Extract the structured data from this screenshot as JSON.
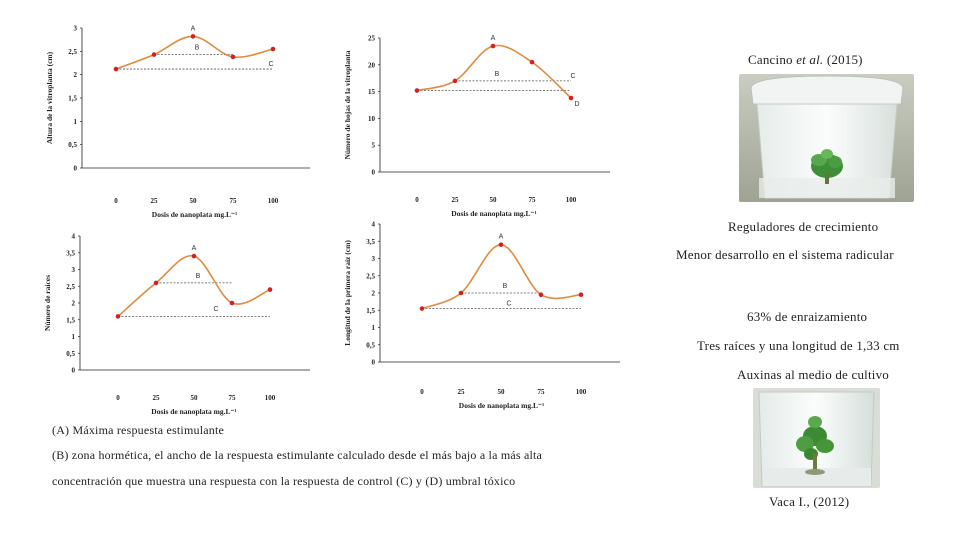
{
  "chart_data": [
    {
      "type": "line",
      "id": "c1",
      "ylabel": "Altura de la vitroplanta (cm)",
      "xlabel": "Dosis de nanoplata mg.L⁻¹",
      "x": [
        0,
        25,
        50,
        75,
        100
      ],
      "y": [
        2.12,
        2.43,
        2.82,
        2.38,
        2.55
      ],
      "ylim": [
        0,
        3
      ],
      "yticks": [
        "0",
        "0,5",
        "1",
        "1,5",
        "2",
        "2,5",
        "3"
      ],
      "ytick_values": [
        0,
        0.5,
        1,
        1.5,
        2,
        2.5,
        3
      ],
      "xticks": [
        "0",
        "25",
        "50",
        "75",
        "100"
      ],
      "control": 2.12,
      "hormetic_level": 2.43,
      "hormetic_x": [
        25,
        75
      ],
      "labels": [
        {
          "text": "A",
          "x": 50,
          "y": 2.82
        },
        {
          "text": "B",
          "x": 50,
          "y": 2.43
        },
        {
          "text": "C",
          "x": 100,
          "y": 2.12
        }
      ]
    },
    {
      "type": "line",
      "id": "c2",
      "ylabel": "Número de hojas de la vitroplanta",
      "xlabel": "Dosis de nanoplata mg.L⁻¹",
      "x": [
        0,
        25,
        50,
        75,
        100
      ],
      "y": [
        15.2,
        17.0,
        23.5,
        20.5,
        13.8
      ],
      "ylim": [
        0,
        25
      ],
      "yticks": [
        "0",
        "5",
        "10",
        "15",
        "20",
        "25"
      ],
      "ytick_values": [
        0,
        5,
        10,
        15,
        20,
        25
      ],
      "xticks": [
        "0",
        "25",
        "50",
        "75",
        "100"
      ],
      "control": 15.2,
      "hormetic_level": 17.0,
      "hormetic_x": [
        25,
        100
      ],
      "labels": [
        {
          "text": "A",
          "x": 50,
          "y": 23.5
        },
        {
          "text": "B",
          "x": 50,
          "y": 17.0
        },
        {
          "text": "C",
          "x": 100,
          "y": 17.0
        },
        {
          "text": "D",
          "x": 100,
          "y": 13.8
        }
      ]
    },
    {
      "type": "line",
      "id": "c3",
      "ylabel": "Número de raíces",
      "xlabel": "Dosis de nanoplata mg.L⁻¹",
      "x": [
        0,
        25,
        50,
        75,
        100
      ],
      "y": [
        1.6,
        2.6,
        3.4,
        2.0,
        2.4
      ],
      "ylim": [
        0,
        4
      ],
      "yticks": [
        "0",
        "0,5",
        "1",
        "1,5",
        "2",
        "2,5",
        "3",
        "3,5",
        "4"
      ],
      "ytick_values": [
        0,
        0.5,
        1,
        1.5,
        2,
        2.5,
        3,
        3.5,
        4
      ],
      "xticks": [
        "0",
        "25",
        "50",
        "75",
        "100"
      ],
      "control": 1.6,
      "hormetic_level": 2.6,
      "hormetic_x": [
        25,
        75
      ],
      "labels": [
        {
          "text": "A",
          "x": 50,
          "y": 3.4
        },
        {
          "text": "B",
          "x": 50,
          "y": 2.6
        },
        {
          "text": "C",
          "x": 75,
          "y": 2.0
        }
      ]
    },
    {
      "type": "line",
      "id": "c4",
      "ylabel": "Longitud de la primera raíz (cm)",
      "xlabel": "Dosis de nanoplata mg.L⁻¹",
      "x": [
        0,
        25,
        50,
        75,
        100
      ],
      "y": [
        1.55,
        2.0,
        3.4,
        1.95,
        1.95
      ],
      "ylim": [
        0,
        4
      ],
      "yticks": [
        "0",
        "0,5",
        "1",
        "1,5",
        "2",
        "2,5",
        "3",
        "3,5",
        "4"
      ],
      "ytick_values": [
        0,
        0.5,
        1,
        1.5,
        2,
        2.5,
        3,
        3.5,
        4
      ],
      "xticks": [
        "0",
        "25",
        "50",
        "75",
        "100"
      ],
      "control": 1.55,
      "hormetic_level": 2.0,
      "hormetic_x": [
        25,
        75
      ],
      "labels": [
        {
          "text": "A",
          "x": 50,
          "y": 3.4
        },
        {
          "text": "B",
          "x": 50,
          "y": 2.0
        },
        {
          "text": "C",
          "x": 50,
          "y": 1.55
        }
      ]
    }
  ],
  "colors": {
    "curve": "#E08A3C",
    "point": "#D42020",
    "ref_line": "#555555",
    "axis": "#222222"
  },
  "right": {
    "ref1_author": "Cancino",
    "ref1_etal": "et al.",
    "ref1_year": "(2015)",
    "reguladores": "Reguladores de crecimiento",
    "menor": "Menor desarrollo en el sistema radicular",
    "enraiz": "63% de enraizamiento",
    "tres": "Tres raíces y una longitud de 1,33 cm",
    "auxinas": "Auxinas al medio de cultivo",
    "ref2": "Vaca I., (2012)"
  },
  "legend": {
    "a": "(A) Máxima respuesta estimulante",
    "b": "(B) zona hormética, el ancho de la respuesta estimulante calculado desde el más bajo a la más alta",
    "c": "concentración que muestra una respuesta con la respuesta de control (C) y (D) umbral tóxico"
  }
}
